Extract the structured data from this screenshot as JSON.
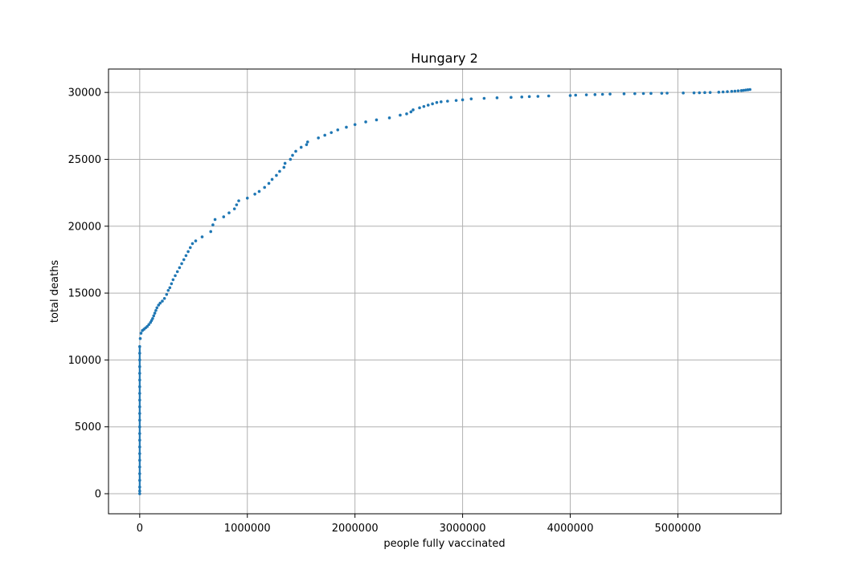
{
  "chart_data": {
    "type": "scatter",
    "title": "Hungary 2",
    "xlabel": "people fully vaccinated",
    "ylabel": "total deaths",
    "xlim": [
      -290000,
      5960000
    ],
    "ylim": [
      -1500,
      31750
    ],
    "xticks": [
      0,
      1000000,
      2000000,
      3000000,
      4000000,
      5000000
    ],
    "xtick_labels": [
      "0",
      "1000000",
      "2000000",
      "3000000",
      "4000000",
      "5000000"
    ],
    "yticks": [
      0,
      5000,
      10000,
      15000,
      20000,
      25000,
      30000
    ],
    "ytick_labels": [
      "0",
      "5000",
      "10000",
      "15000",
      "20000",
      "25000",
      "30000"
    ],
    "grid": true,
    "colors": {
      "points": "#1f77b4",
      "grid": "#b0b0b0"
    },
    "series": [
      {
        "x": [
          0,
          0,
          0,
          0,
          0,
          0,
          0,
          0,
          0,
          0,
          0,
          0,
          0,
          0,
          0,
          0,
          0,
          0,
          0,
          0,
          0,
          0,
          0,
          0,
          5000,
          12000,
          25000,
          40000,
          55000,
          70000,
          85000,
          100000,
          110000,
          120000,
          130000,
          140000,
          150000,
          160000,
          175000,
          190000,
          210000,
          230000,
          250000,
          265000,
          280000,
          295000,
          310000,
          330000,
          350000,
          370000,
          390000,
          410000,
          430000,
          450000,
          470000,
          490000,
          520000,
          580000,
          660000,
          680000,
          700000,
          780000,
          830000,
          880000,
          900000,
          920000,
          1000000,
          1070000,
          1110000,
          1160000,
          1200000,
          1230000,
          1270000,
          1300000,
          1340000,
          1350000,
          1400000,
          1420000,
          1450000,
          1500000,
          1550000,
          1560000,
          1660000,
          1720000,
          1780000,
          1840000,
          1920000,
          2000000,
          2100000,
          2200000,
          2320000,
          2420000,
          2480000,
          2520000,
          2540000,
          2600000,
          2640000,
          2680000,
          2720000,
          2760000,
          2800000,
          2860000,
          2940000,
          3000000,
          3080000,
          3200000,
          3320000,
          3450000,
          3550000,
          3620000,
          3700000,
          3800000,
          4000000,
          4050000,
          4150000,
          4230000,
          4300000,
          4370000,
          4500000,
          4600000,
          4680000,
          4750000,
          4850000,
          4900000,
          5050000,
          5150000,
          5200000,
          5250000,
          5300000,
          5380000,
          5420000,
          5460000,
          5500000,
          5530000,
          5560000,
          5590000,
          5610000,
          5630000,
          5650000,
          5670000
        ],
        "y": [
          0,
          200,
          500,
          1000,
          1500,
          2000,
          2500,
          3000,
          3500,
          4000,
          4500,
          5000,
          5500,
          6000,
          6500,
          7000,
          7500,
          8000,
          8500,
          9000,
          9500,
          10000,
          10500,
          11000,
          11600,
          12000,
          12200,
          12300,
          12400,
          12500,
          12650,
          12800,
          12950,
          13100,
          13300,
          13500,
          13700,
          13900,
          14100,
          14250,
          14400,
          14600,
          14900,
          15200,
          15400,
          15700,
          16000,
          16300,
          16600,
          16900,
          17200,
          17500,
          17800,
          18100,
          18400,
          18700,
          18900,
          19200,
          19600,
          20100,
          20500,
          20700,
          21000,
          21300,
          21600,
          21900,
          22100,
          22400,
          22600,
          22900,
          23200,
          23500,
          23800,
          24100,
          24400,
          24700,
          25000,
          25300,
          25600,
          25900,
          26100,
          26300,
          26600,
          26800,
          27000,
          27200,
          27400,
          27600,
          27800,
          27950,
          28100,
          28300,
          28400,
          28550,
          28700,
          28850,
          28950,
          29050,
          29150,
          29250,
          29300,
          29350,
          29400,
          29450,
          29520,
          29560,
          29600,
          29630,
          29660,
          29690,
          29710,
          29740,
          29770,
          29800,
          29820,
          29840,
          29860,
          29880,
          29900,
          29910,
          29920,
          29930,
          29940,
          29950,
          29960,
          29970,
          29980,
          29990,
          30000,
          30020,
          30040,
          30060,
          30080,
          30100,
          30120,
          30140,
          30160,
          30180,
          30200,
          30220
        ]
      }
    ]
  }
}
